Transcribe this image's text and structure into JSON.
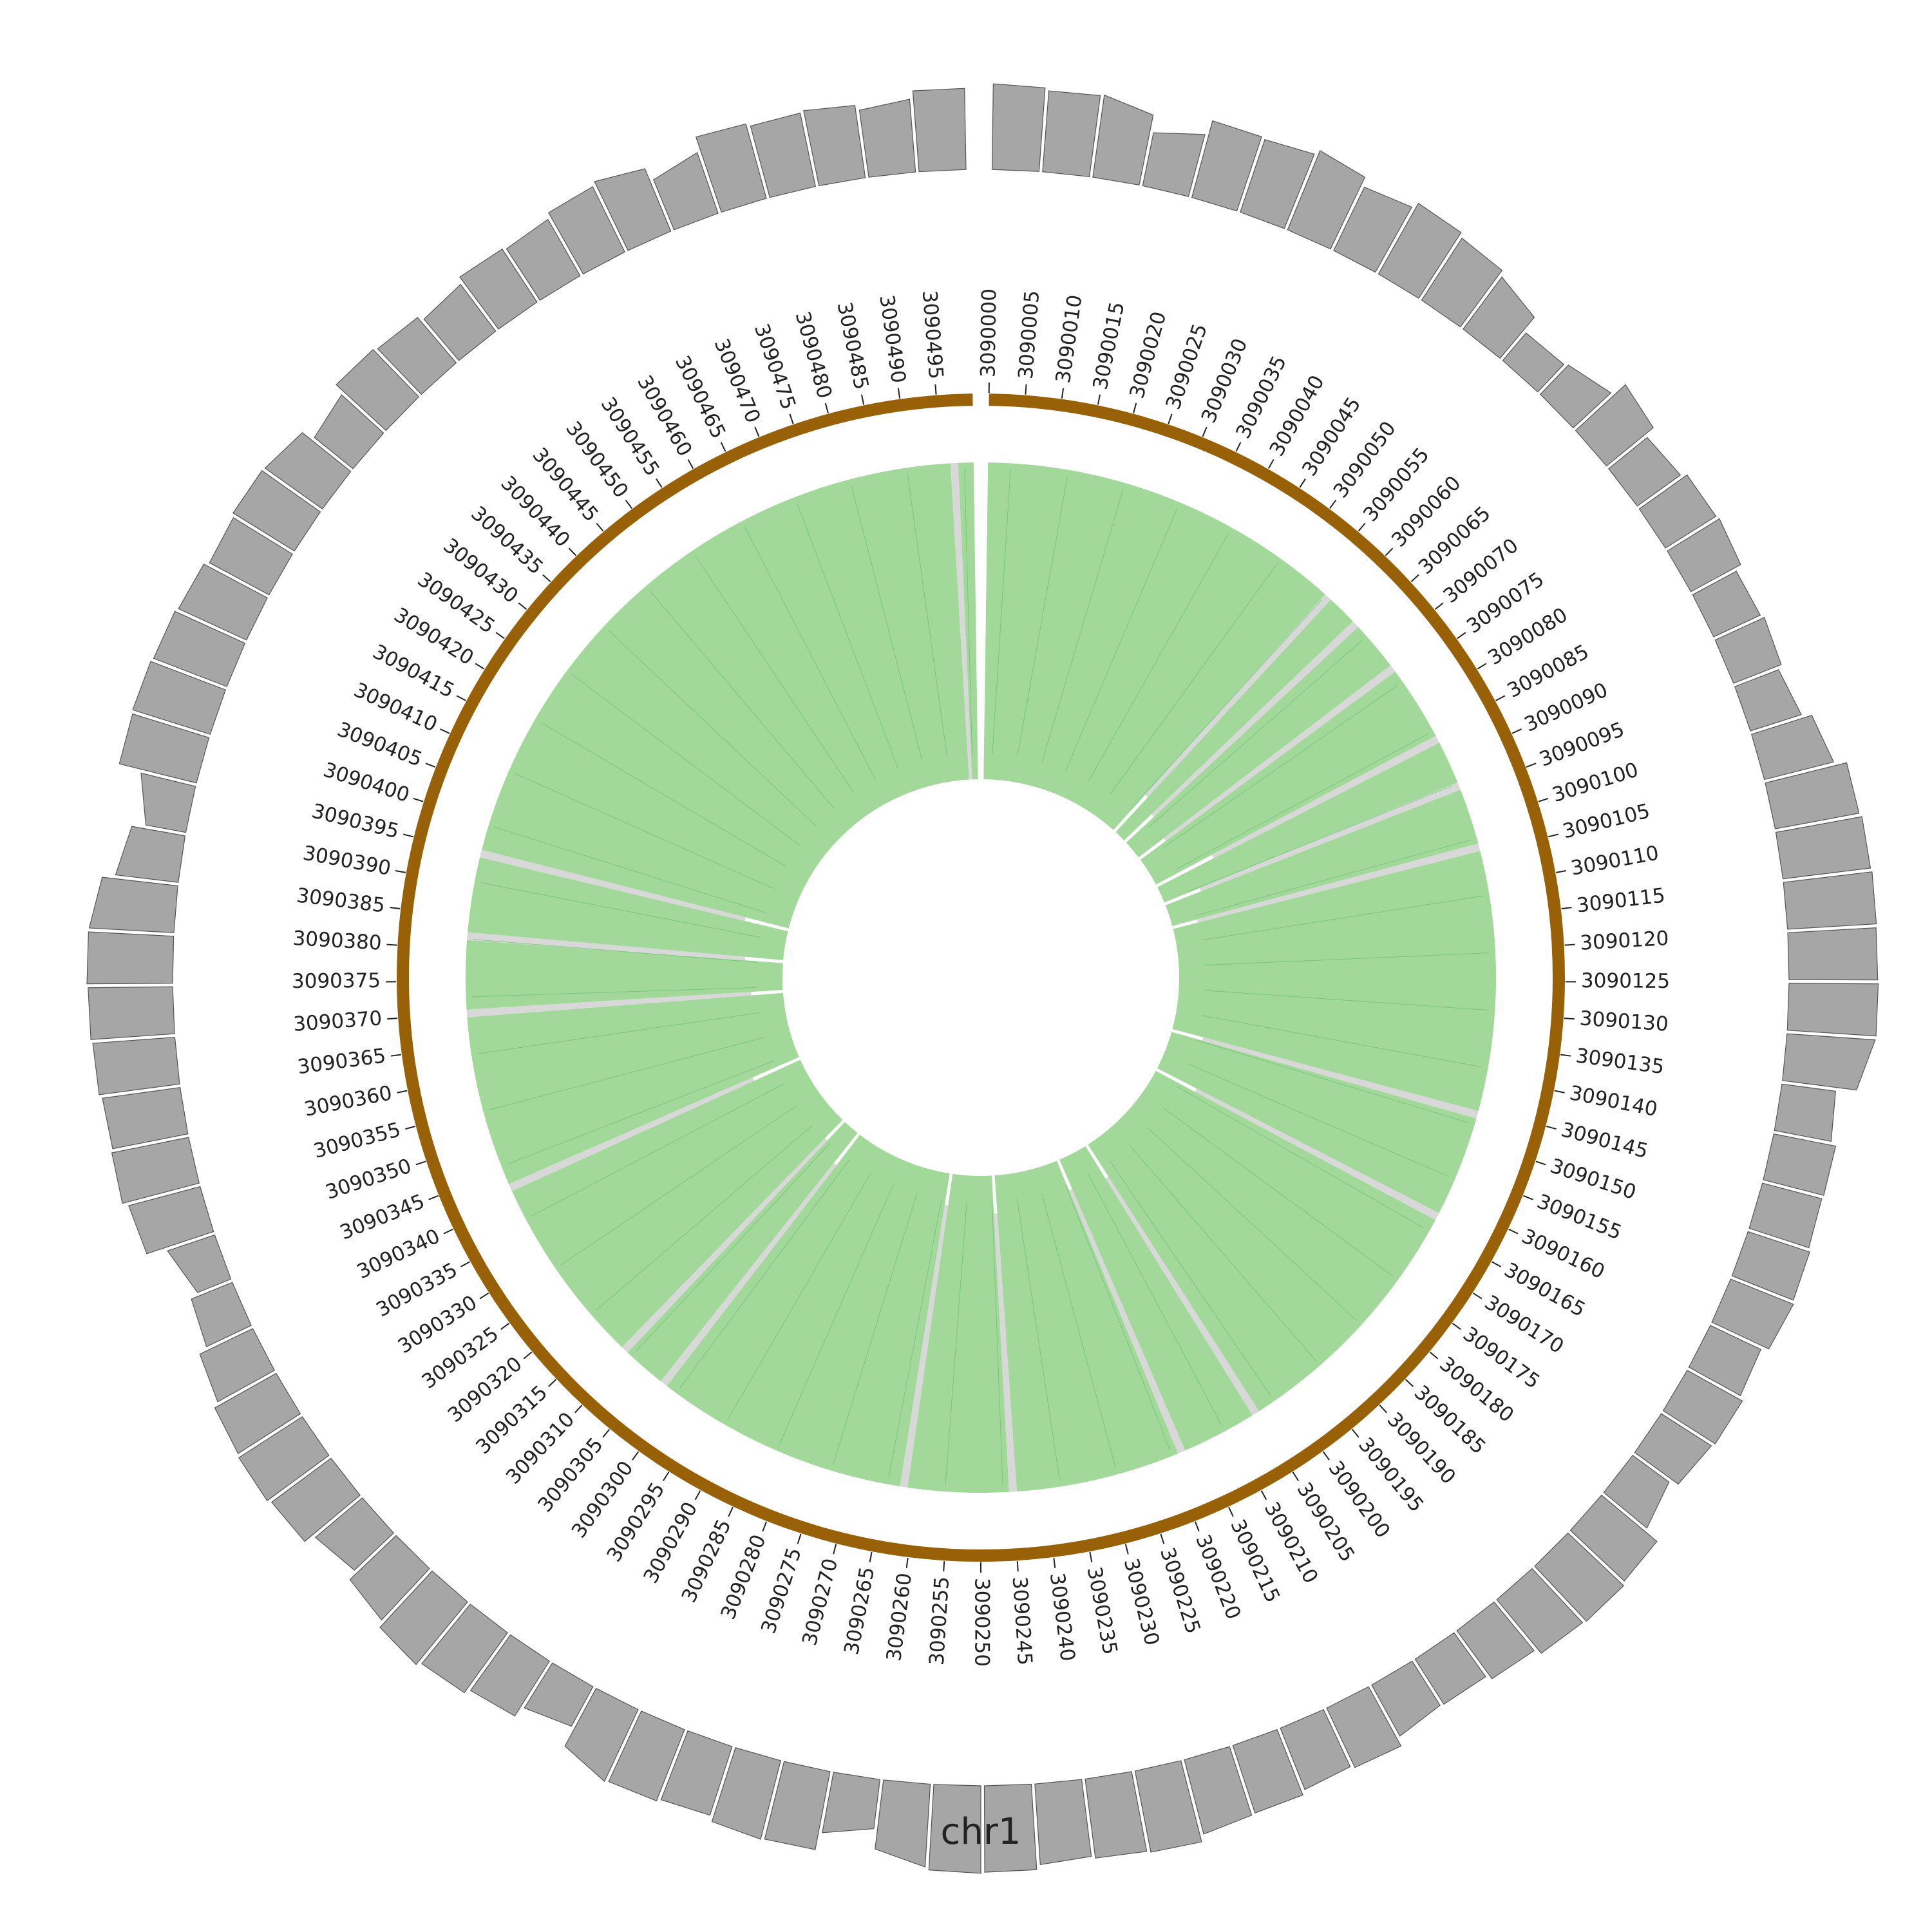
{
  "chart_data": {
    "type": "circos",
    "chromosome": "chr1",
    "range": [
      3090000,
      3090499
    ],
    "tick_step": 5,
    "tick_labels": [
      "3090000",
      "3090005",
      "3090010",
      "3090015",
      "3090020",
      "3090025",
      "3090030",
      "3090035",
      "3090040",
      "3090045",
      "3090050",
      "3090055",
      "3090060",
      "3090065",
      "3090070",
      "3090075",
      "3090080",
      "3090085",
      "3090090",
      "3090095",
      "3090100",
      "3090105",
      "3090110",
      "3090115",
      "3090120",
      "3090125",
      "3090130",
      "3090135",
      "3090140",
      "3090145",
      "3090150",
      "3090155",
      "3090160",
      "3090165",
      "3090170",
      "3090175",
      "3090180",
      "3090185",
      "3090190",
      "3090195",
      "3090200",
      "3090205",
      "3090210",
      "3090215",
      "3090220",
      "3090225",
      "3090230",
      "3090235",
      "3090240",
      "3090245",
      "3090250",
      "3090255",
      "3090260",
      "3090265",
      "3090270",
      "3090275",
      "3090280",
      "3090285",
      "3090290",
      "3090295",
      "3090300",
      "3090305",
      "3090310",
      "3090315",
      "3090320",
      "3090325",
      "3090330",
      "3090335",
      "3090340",
      "3090345",
      "3090350",
      "3090355",
      "3090360",
      "3090365",
      "3090370",
      "3090375",
      "3090380",
      "3090385",
      "3090390",
      "3090395",
      "3090400",
      "3090405",
      "3090410",
      "3090415",
      "3090420",
      "3090425",
      "3090430",
      "3090435",
      "3090440",
      "3090445",
      "3090450",
      "3090455",
      "3090460",
      "3090465",
      "3090470",
      "3090475",
      "3090480",
      "3090485",
      "3090490",
      "3090495"
    ],
    "coverage_track": {
      "color": "#a6a6a6",
      "edge_color": "#555555",
      "ylim": [
        0,
        1
      ],
      "values": [
        {
          "pos": 3090000,
          "value": 0.95
        },
        {
          "pos": 3090005,
          "value": 0.9
        },
        {
          "pos": 3090010,
          "value": 0.92
        },
        {
          "pos": 3090015,
          "value": 0.6
        },
        {
          "pos": 3090020,
          "value": 0.88
        },
        {
          "pos": 3090025,
          "value": 0.85
        },
        {
          "pos": 3090030,
          "value": 0.95
        },
        {
          "pos": 3090035,
          "value": 0.78
        },
        {
          "pos": 3090040,
          "value": 0.9
        },
        {
          "pos": 3090045,
          "value": 0.82
        },
        {
          "pos": 3090050,
          "value": 0.72
        },
        {
          "pos": 3090055,
          "value": 0.4
        },
        {
          "pos": 3090060,
          "value": 0.45
        },
        {
          "pos": 3090065,
          "value": 0.75
        },
        {
          "pos": 3090070,
          "value": 0.55
        },
        {
          "pos": 3090075,
          "value": 0.65
        },
        {
          "pos": 3090080,
          "value": 0.68
        },
        {
          "pos": 3090085,
          "value": 0.55
        },
        {
          "pos": 3090090,
          "value": 0.6
        },
        {
          "pos": 3090095,
          "value": 0.52
        },
        {
          "pos": 3090100,
          "value": 0.7
        },
        {
          "pos": 3090105,
          "value": 0.93
        },
        {
          "pos": 3090110,
          "value": 0.97
        },
        {
          "pos": 3090115,
          "value": 0.99
        },
        {
          "pos": 3090120,
          "value": 0.98
        },
        {
          "pos": 3090125,
          "value": 0.99
        },
        {
          "pos": 3090130,
          "value": 0.98
        },
        {
          "pos": 3090135,
          "value": 0.6
        },
        {
          "pos": 3090140,
          "value": 0.7
        },
        {
          "pos": 3090145,
          "value": 0.68
        },
        {
          "pos": 3090150,
          "value": 0.72
        },
        {
          "pos": 3090155,
          "value": 0.75
        },
        {
          "pos": 3090160,
          "value": 0.62
        },
        {
          "pos": 3090165,
          "value": 0.7
        },
        {
          "pos": 3090170,
          "value": 0.66
        },
        {
          "pos": 3090175,
          "value": 0.5
        },
        {
          "pos": 3090180,
          "value": 0.8
        },
        {
          "pos": 3090185,
          "value": 0.85
        },
        {
          "pos": 3090190,
          "value": 0.82
        },
        {
          "pos": 3090195,
          "value": 0.7
        },
        {
          "pos": 3090200,
          "value": 0.6
        },
        {
          "pos": 3090205,
          "value": 0.58
        },
        {
          "pos": 3090210,
          "value": 0.75
        },
        {
          "pos": 3090215,
          "value": 0.7
        },
        {
          "pos": 3090220,
          "value": 0.78
        },
        {
          "pos": 3090225,
          "value": 0.8
        },
        {
          "pos": 3090230,
          "value": 0.93
        },
        {
          "pos": 3090235,
          "value": 0.9
        },
        {
          "pos": 3090240,
          "value": 0.86
        },
        {
          "pos": 3090245,
          "value": 0.95
        },
        {
          "pos": 3090250,
          "value": 0.97
        },
        {
          "pos": 3090255,
          "value": 0.92
        },
        {
          "pos": 3090260,
          "value": 0.55
        },
        {
          "pos": 3090265,
          "value": 0.88
        },
        {
          "pos": 3090270,
          "value": 0.9
        },
        {
          "pos": 3090275,
          "value": 0.8
        },
        {
          "pos": 3090280,
          "value": 0.85
        },
        {
          "pos": 3090285,
          "value": 0.88
        },
        {
          "pos": 3090290,
          "value": 0.5
        },
        {
          "pos": 3090295,
          "value": 0.72
        },
        {
          "pos": 3090300,
          "value": 0.82
        },
        {
          "pos": 3090305,
          "value": 0.9
        },
        {
          "pos": 3090310,
          "value": 0.78
        },
        {
          "pos": 3090315,
          "value": 0.6
        },
        {
          "pos": 3090320,
          "value": 0.8
        },
        {
          "pos": 3090325,
          "value": 0.85
        },
        {
          "pos": 3090330,
          "value": 0.82
        },
        {
          "pos": 3090335,
          "value": 0.72
        },
        {
          "pos": 3090340,
          "value": 0.55
        },
        {
          "pos": 3090345,
          "value": 0.4
        },
        {
          "pos": 3090350,
          "value": 0.78
        },
        {
          "pos": 3090355,
          "value": 0.88
        },
        {
          "pos": 3090360,
          "value": 0.85
        },
        {
          "pos": 3090365,
          "value": 0.9
        },
        {
          "pos": 3090370,
          "value": 0.93
        },
        {
          "pos": 3090375,
          "value": 0.95
        },
        {
          "pos": 3090380,
          "value": 0.94
        },
        {
          "pos": 3090385,
          "value": 0.7
        },
        {
          "pos": 3090390,
          "value": 0.45
        },
        {
          "pos": 3090395,
          "value": 0.88
        },
        {
          "pos": 3090400,
          "value": 0.9
        },
        {
          "pos": 3090405,
          "value": 0.87
        },
        {
          "pos": 3090410,
          "value": 0.83
        },
        {
          "pos": 3090415,
          "value": 0.75
        },
        {
          "pos": 3090420,
          "value": 0.8
        },
        {
          "pos": 3090425,
          "value": 0.78
        },
        {
          "pos": 3090430,
          "value": 0.55
        },
        {
          "pos": 3090435,
          "value": 0.75
        },
        {
          "pos": 3090440,
          "value": 0.7
        },
        {
          "pos": 3090445,
          "value": 0.6
        },
        {
          "pos": 3090450,
          "value": 0.72
        },
        {
          "pos": 3090455,
          "value": 0.68
        },
        {
          "pos": 3090460,
          "value": 0.78
        },
        {
          "pos": 3090465,
          "value": 0.85
        },
        {
          "pos": 3090470,
          "value": 0.6
        },
        {
          "pos": 3090475,
          "value": 0.88
        },
        {
          "pos": 3090480,
          "value": 0.82
        },
        {
          "pos": 3090485,
          "value": 0.85
        },
        {
          "pos": 3090490,
          "value": 0.75
        },
        {
          "pos": 3090495,
          "value": 0.9
        }
      ]
    },
    "ideogram": {
      "color": "#996107"
    },
    "inner_track": {
      "fill_color": "#a2d99a",
      "line_color": "#5cb96b",
      "gap_color": "#d8d8d8",
      "gaps": [
        {
          "pos": 3090058,
          "value": 0.15
        },
        {
          "pos": 3090064,
          "value": 0.12
        },
        {
          "pos": 3090073,
          "value": 0.1
        },
        {
          "pos": 3090086,
          "value": 0.2
        },
        {
          "pos": 3090094,
          "value": 0.12
        },
        {
          "pos": 3090104,
          "value": 0.08
        },
        {
          "pos": 3090146,
          "value": 0.1
        },
        {
          "pos": 3090163,
          "value": 0.14
        },
        {
          "pos": 3090205,
          "value": 0.12
        },
        {
          "pos": 3090218,
          "value": 0.1
        },
        {
          "pos": 3090245,
          "value": 0.12
        },
        {
          "pos": 3090262,
          "value": 0.1
        },
        {
          "pos": 3090303,
          "value": 0.12
        },
        {
          "pos": 3090311,
          "value": 0.08
        },
        {
          "pos": 3090342,
          "value": 0.16
        },
        {
          "pos": 3090370,
          "value": 0.1
        },
        {
          "pos": 3090382,
          "value": 0.12
        },
        {
          "pos": 3090395,
          "value": 0.14
        },
        {
          "pos": 3090497,
          "value": 0.0
        }
      ]
    }
  }
}
